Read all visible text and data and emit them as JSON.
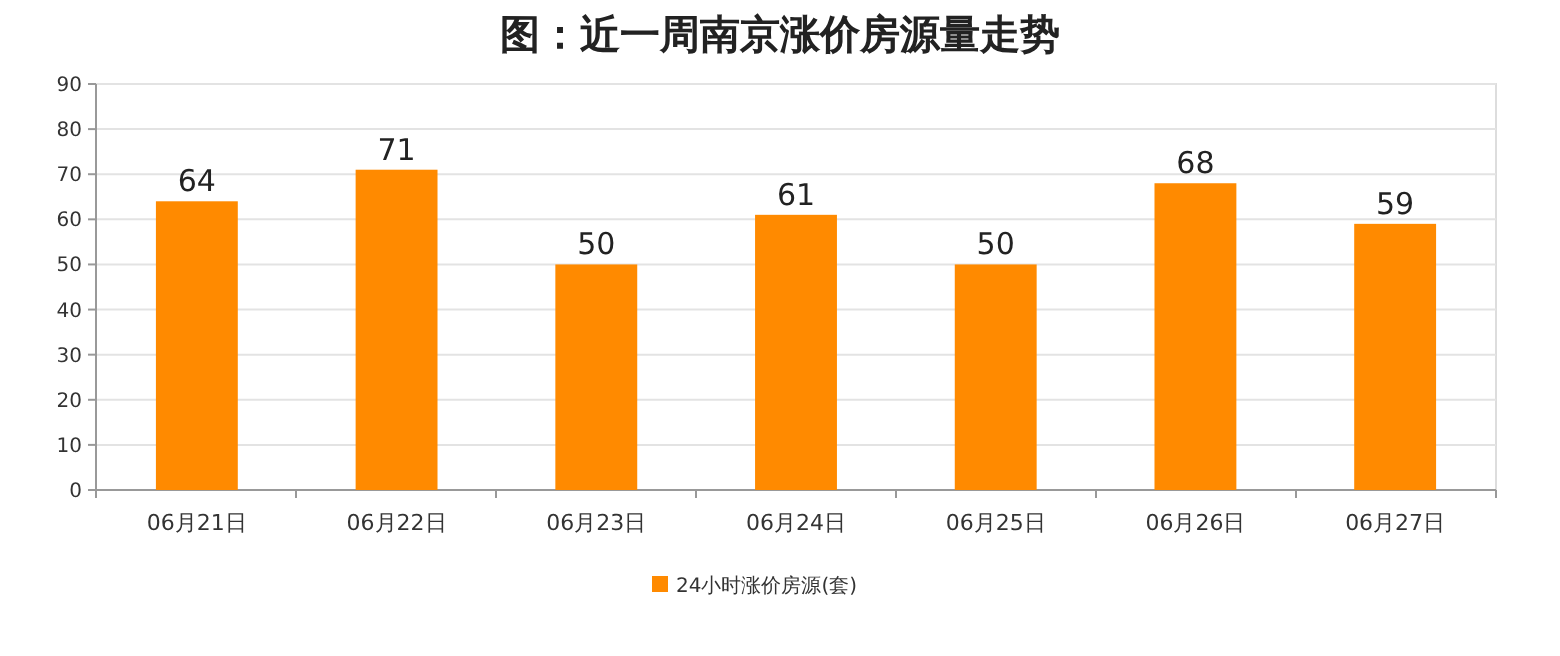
{
  "chart_data": {
    "type": "bar",
    "title": "图：近一周南京涨价房源量走势",
    "categories": [
      "06月21日",
      "06月22日",
      "06月23日",
      "06月24日",
      "06月25日",
      "06月26日",
      "06月27日"
    ],
    "series": [
      {
        "name": "24小时涨价房源(套)",
        "color": "#ff8a00",
        "values": [
          64,
          71,
          50,
          61,
          50,
          68,
          59
        ]
      }
    ],
    "ylim": [
      0,
      90
    ],
    "yticks": [
      0,
      10,
      20,
      30,
      40,
      50,
      60,
      70,
      80,
      90
    ],
    "grid": "y",
    "legend": "bottom",
    "data_labels": true
  }
}
